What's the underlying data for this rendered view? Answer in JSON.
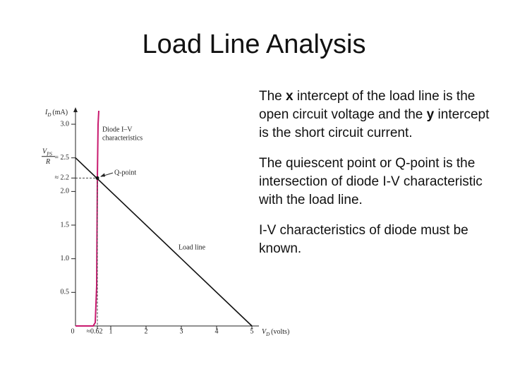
{
  "slide": {
    "title": "Load Line Analysis",
    "bullets": [
      [
        {
          "text": "The "
        },
        {
          "text": "x",
          "bold": true
        },
        {
          "text": " intercept of the load line is the open circuit voltage and the "
        },
        {
          "text": "y",
          "bold": true
        },
        {
          "text": " intercept is the short circuit current."
        }
      ],
      [
        {
          "text": "The quiescent point or Q-point is the intersection of diode I-V characteristic with the load line."
        }
      ],
      [
        {
          "text": "I-V characteristics of diode must be known."
        }
      ]
    ]
  },
  "chart_data": {
    "type": "line",
    "y_label": {
      "symbol": "I",
      "subscript": "D",
      "unit": "(mA)"
    },
    "x_label": {
      "symbol": "V",
      "subscript": "D",
      "unit": "(volts)"
    },
    "y_intercept_label": {
      "symbol": "V",
      "subscript": "PS",
      "denominator": "R"
    },
    "xlim": [
      0,
      5.2
    ],
    "ylim": [
      0,
      3.2
    ],
    "xticks": [
      0,
      {
        "value": 0.62,
        "label": "≈0.62"
      },
      1,
      2,
      3,
      4,
      5
    ],
    "yticks": [
      {
        "value": 0.5,
        "label": "0.5"
      },
      {
        "value": 1,
        "label": "1.0"
      },
      {
        "value": 1.5,
        "label": "1.5"
      },
      {
        "value": 2,
        "label": "2.0"
      },
      {
        "value": 2.2,
        "label": "≈ 2.2"
      },
      {
        "value": 2.5,
        "label": "= 2.5"
      },
      {
        "value": 3,
        "label": "3.0"
      }
    ],
    "series": [
      {
        "name": "Diode I–V characteristics",
        "color": "#c8196e",
        "x": [
          0,
          0.5,
          0.56,
          0.6,
          0.62,
          0.64,
          0.66
        ],
        "values": [
          0,
          0,
          0.05,
          0.6,
          2.2,
          3.0,
          3.2
        ]
      },
      {
        "name": "Load line",
        "color": "#111111",
        "x": [
          0,
          5
        ],
        "values": [
          2.5,
          0
        ]
      }
    ],
    "diode_label": [
      "Diode I–V",
      "characteristics"
    ],
    "q_point": {
      "label": "Q-point",
      "x": 0.62,
      "y": 2.2
    }
  }
}
